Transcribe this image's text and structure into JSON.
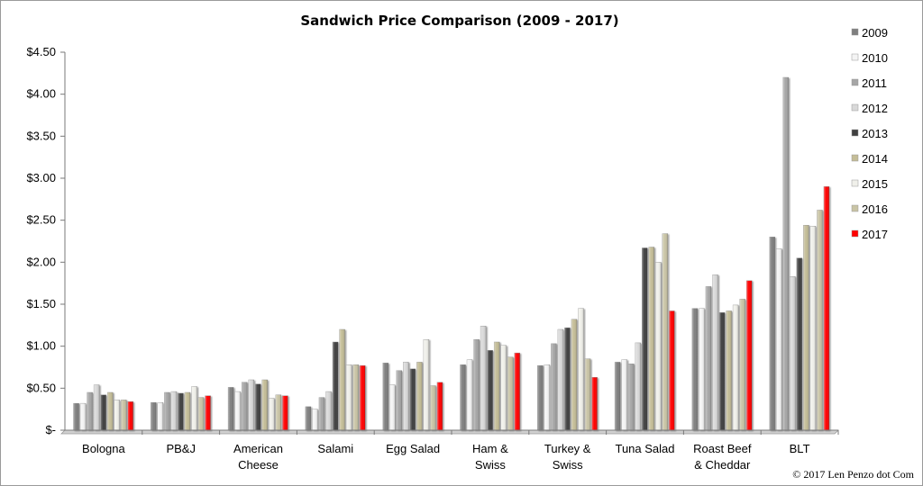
{
  "chart_data": {
    "type": "bar",
    "title": "Sandwich Price Comparison (2009 - 2017)",
    "xlabel": "",
    "ylabel": "",
    "ylim": [
      0,
      4.5
    ],
    "ytick_values": [
      0,
      0.5,
      1.0,
      1.5,
      2.0,
      2.5,
      3.0,
      3.5,
      4.0,
      4.5
    ],
    "ytick_labels": [
      "$-",
      "$0.50",
      "$1.00",
      "$1.50",
      "$2.00",
      "$2.50",
      "$3.00",
      "$3.50",
      "$4.00",
      "$4.50"
    ],
    "grid": false,
    "legend_position": "right",
    "categories": [
      [
        "Bologna"
      ],
      [
        "PB&J"
      ],
      [
        "American",
        "Cheese"
      ],
      [
        "Salami"
      ],
      [
        "Egg Salad"
      ],
      [
        "Ham &",
        "Swiss"
      ],
      [
        "Turkey &",
        "Swiss"
      ],
      [
        "Tuna  Salad"
      ],
      [
        "Roast Beef",
        "& Cheddar"
      ],
      [
        "BLT"
      ]
    ],
    "series": [
      {
        "name": "2009",
        "color": "#7f7f7f",
        "values": [
          0.32,
          0.33,
          0.51,
          0.28,
          0.8,
          0.78,
          0.77,
          0.81,
          1.45,
          2.3
        ]
      },
      {
        "name": "2010",
        "color": "#f4f4f4",
        "values": [
          0.32,
          0.33,
          0.46,
          0.25,
          0.54,
          0.84,
          0.78,
          0.84,
          1.45,
          2.16
        ]
      },
      {
        "name": "2011",
        "color": "#a6a6a6",
        "values": [
          0.45,
          0.45,
          0.57,
          0.39,
          0.71,
          1.08,
          1.03,
          0.79,
          1.71,
          4.2
        ]
      },
      {
        "name": "2012",
        "color": "#d9d9d9",
        "values": [
          0.54,
          0.46,
          0.6,
          0.46,
          0.81,
          1.24,
          1.2,
          1.04,
          1.85,
          1.83
        ]
      },
      {
        "name": "2013",
        "color": "#404040",
        "values": [
          0.42,
          0.44,
          0.55,
          1.05,
          0.73,
          0.95,
          1.22,
          2.17,
          1.4,
          2.05
        ]
      },
      {
        "name": "2014",
        "color": "#c4bd97",
        "values": [
          0.45,
          0.45,
          0.6,
          1.2,
          0.81,
          1.05,
          1.32,
          2.18,
          1.42,
          2.44
        ]
      },
      {
        "name": "2015",
        "color": "#f0f0ea",
        "values": [
          0.36,
          0.52,
          0.38,
          0.78,
          1.08,
          1.01,
          1.45,
          2.0,
          1.49,
          2.43
        ]
      },
      {
        "name": "2016",
        "color": "#c9c4a5",
        "values": [
          0.36,
          0.39,
          0.42,
          0.78,
          0.53,
          0.87,
          0.85,
          2.34,
          1.56,
          2.62
        ]
      },
      {
        "name": "2017",
        "color": "#ff0000",
        "values": [
          0.34,
          0.41,
          0.41,
          0.77,
          0.57,
          0.92,
          0.63,
          1.42,
          1.78,
          2.9
        ]
      }
    ]
  },
  "copyright": "© 2017 Len Penzo dot Com"
}
